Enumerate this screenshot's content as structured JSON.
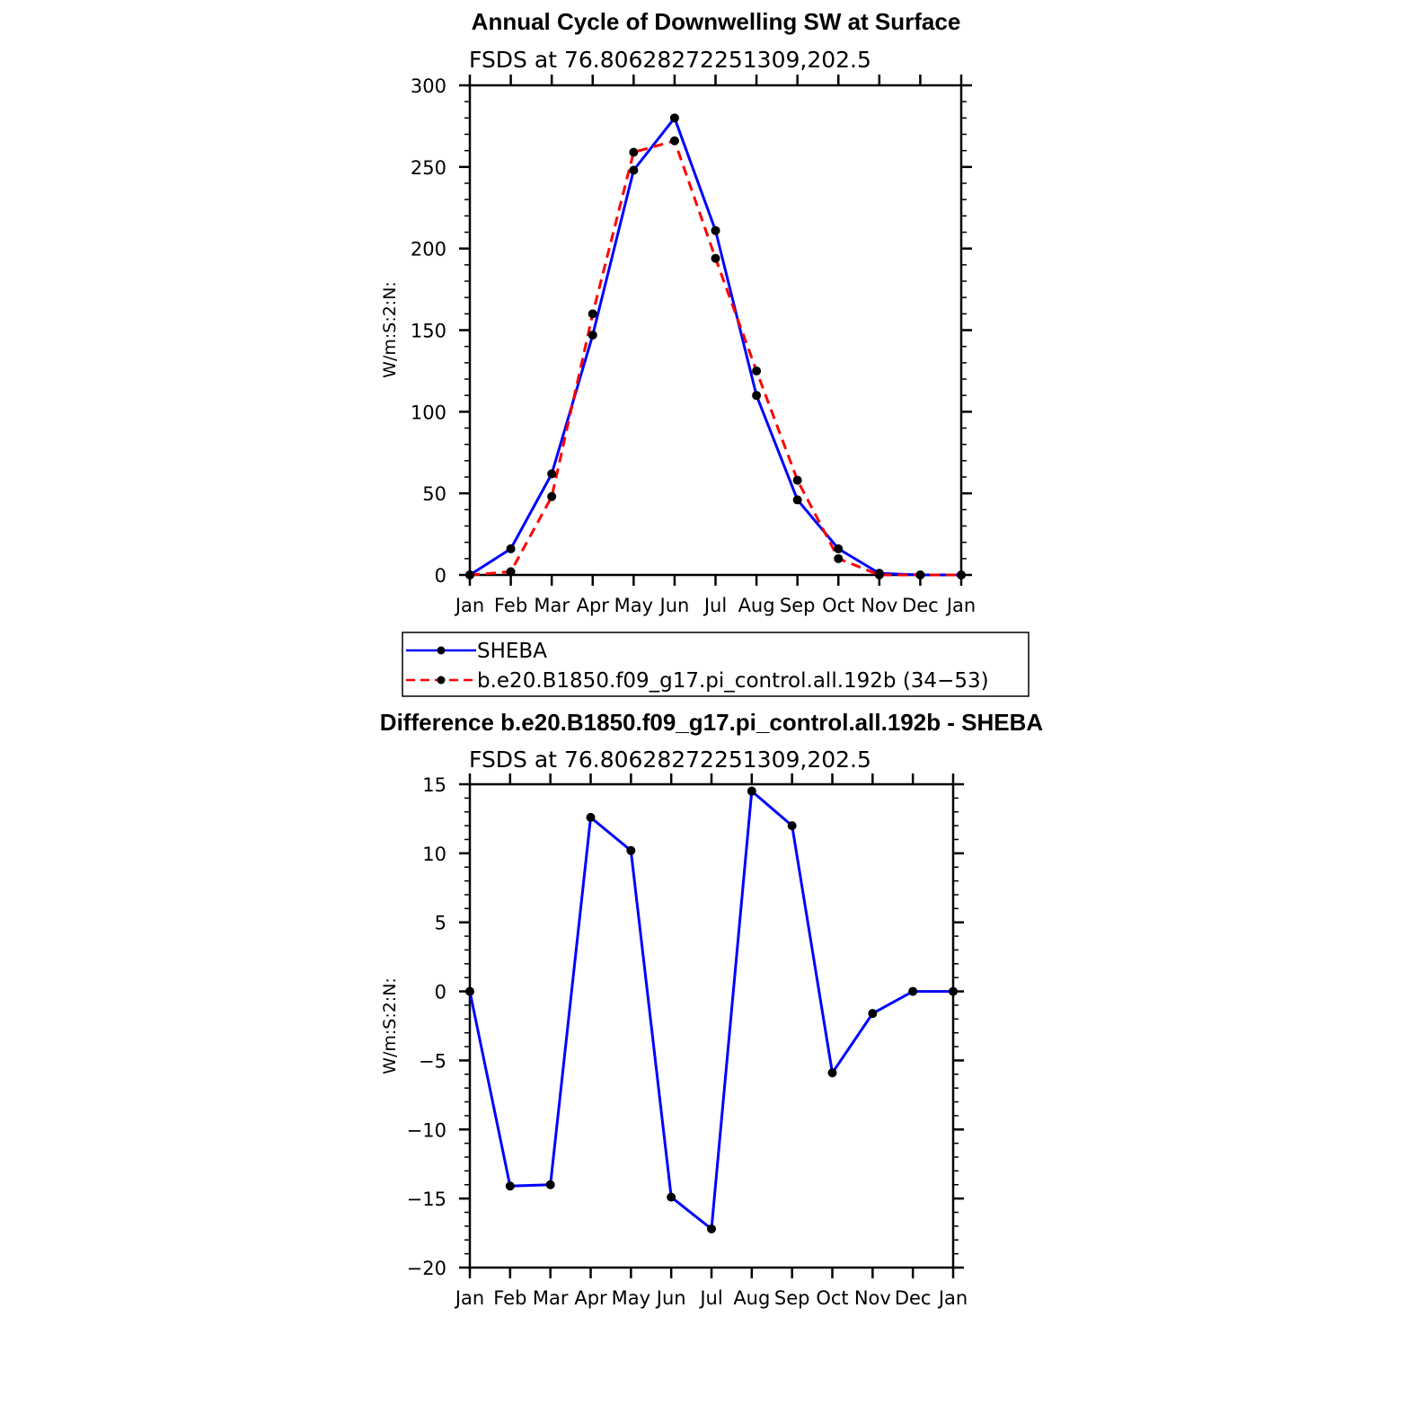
{
  "chart_data": [
    {
      "type": "line",
      "title": "Annual Cycle of Downwelling SW at Surface",
      "subtitle": "FSDS at 76.80628272251309,202.5",
      "ylabel": "W/m:S:2:N:",
      "xlabel": "",
      "categories": [
        "Jan",
        "Feb",
        "Mar",
        "Apr",
        "May",
        "Jun",
        "Jul",
        "Aug",
        "Sep",
        "Oct",
        "Nov",
        "Dec",
        "Jan"
      ],
      "ylim": [
        0,
        300
      ],
      "yticks": [
        0,
        50,
        100,
        150,
        200,
        250,
        300
      ],
      "series": [
        {
          "name": "SHEBA",
          "color": "#0000ff",
          "dash": "solid",
          "values": [
            0,
            16,
            62,
            147,
            248,
            280,
            211,
            110,
            46,
            16,
            1,
            0,
            0
          ]
        },
        {
          "name": "b.e20.B1850.f09_g17.pi_control.all.192b (34−53)",
          "color": "#ff0000",
          "dash": "dashed",
          "values": [
            0,
            2,
            48,
            160,
            259,
            266,
            194,
            125,
            58,
            10,
            0,
            0,
            0
          ]
        }
      ],
      "legend": "below"
    },
    {
      "type": "line",
      "title": "Difference b.e20.B1850.f09_g17.pi_control.all.192b - SHEBA",
      "subtitle": "FSDS at 76.80628272251309,202.5",
      "ylabel": "W/m:S:2:N:",
      "xlabel": "",
      "categories": [
        "Jan",
        "Feb",
        "Mar",
        "Apr",
        "May",
        "Jun",
        "Jul",
        "Aug",
        "Sep",
        "Oct",
        "Nov",
        "Dec",
        "Jan"
      ],
      "ylim": [
        -20,
        15
      ],
      "yticks": [
        -20,
        -15,
        -10,
        -5,
        0,
        5,
        10,
        15
      ],
      "series": [
        {
          "color": "#0000ff",
          "dash": "solid",
          "values": [
            0,
            -14.1,
            -14,
            12.6,
            10.2,
            -14.9,
            -17.2,
            14.5,
            12,
            -5.9,
            -1.6,
            0,
            0
          ]
        }
      ]
    }
  ]
}
